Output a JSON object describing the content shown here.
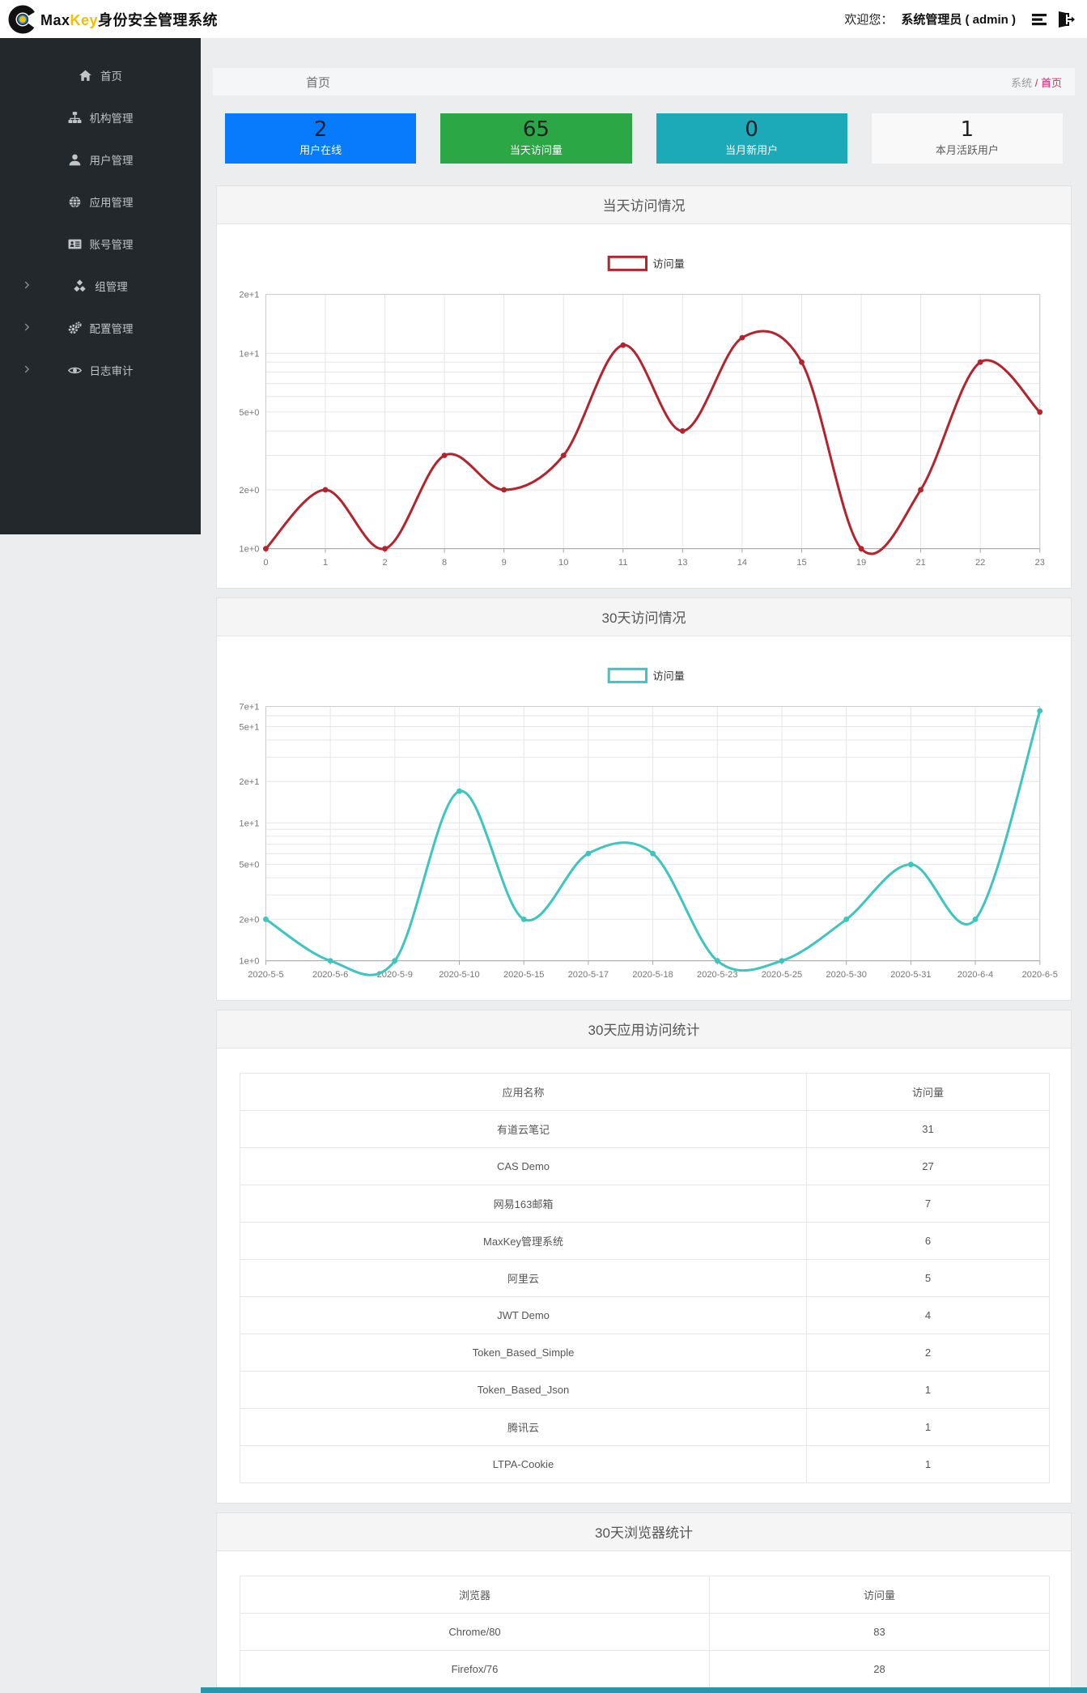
{
  "header": {
    "logo_max": "Max",
    "logo_key": "Key",
    "logo_suffix": "身份安全管理系统",
    "welcome_label": "欢迎您：",
    "admin_label": "系统管理员 ( admin )"
  },
  "sidebar": {
    "items": [
      {
        "label": "首页",
        "icon": "home-icon",
        "expandable": false
      },
      {
        "label": "机构管理",
        "icon": "org-icon",
        "expandable": false
      },
      {
        "label": "用户管理",
        "icon": "user-icon",
        "expandable": false
      },
      {
        "label": "应用管理",
        "icon": "app-icon",
        "expandable": false
      },
      {
        "label": "账号管理",
        "icon": "account-icon",
        "expandable": false
      },
      {
        "label": "组管理",
        "icon": "group-icon",
        "expandable": true
      },
      {
        "label": "配置管理",
        "icon": "config-icon",
        "expandable": true
      },
      {
        "label": "日志审计",
        "icon": "audit-icon",
        "expandable": true
      }
    ]
  },
  "breadcrumb": {
    "page_title": "首页",
    "root": "系统",
    "separator": " / ",
    "current": "首页"
  },
  "stats": {
    "cards": [
      {
        "value": "2",
        "label": "用户在线",
        "color": "#077bfb"
      },
      {
        "value": "65",
        "label": "当天访问量",
        "color": "#2ba745"
      },
      {
        "value": "0",
        "label": "当月新用户",
        "color": "#1ca9b8"
      },
      {
        "value": "1",
        "label": "本月活跃用户",
        "color": "#f9f9f9"
      }
    ]
  },
  "colors": {
    "accent_breadcrumb": "#e2246a",
    "chart_daily": "#b5232c",
    "chart_monthly": "#3dc5c1",
    "sidebar_bg": "#23282d",
    "footer_bar": "#2a96aa"
  },
  "chart_data": [
    {
      "type": "line",
      "title": "当天访问情况",
      "legend": "访问量",
      "color": "#b5232c",
      "smooth": true,
      "y_scale": "log",
      "y_max": 20,
      "y_grid": [
        1,
        2,
        3,
        4,
        5,
        6,
        7,
        8,
        9,
        10,
        20
      ],
      "y_tick_labels": [
        {
          "value": 1,
          "label": "1e+0"
        },
        {
          "value": 2,
          "label": "2e+0"
        },
        {
          "value": 5,
          "label": "5e+0"
        },
        {
          "value": 10,
          "label": "1e+1"
        },
        {
          "value": 20,
          "label": "2e+1"
        }
      ],
      "categories": [
        "0",
        "1",
        "2",
        "8",
        "9",
        "10",
        "11",
        "13",
        "14",
        "15",
        "19",
        "21",
        "22",
        "23"
      ],
      "values": [
        1,
        2,
        1,
        3,
        2,
        3,
        11,
        4,
        12,
        9,
        1,
        2,
        9,
        5
      ]
    },
    {
      "type": "line",
      "title": "30天访问情况",
      "legend": "访问量",
      "color": "#3dc5c1",
      "smooth": true,
      "y_scale": "log",
      "y_max": 70,
      "y_grid": [
        1,
        2,
        3,
        4,
        5,
        6,
        7,
        8,
        9,
        10,
        20,
        30,
        40,
        50,
        60,
        70
      ],
      "y_tick_labels": [
        {
          "value": 1,
          "label": "1e+0"
        },
        {
          "value": 2,
          "label": "2e+0"
        },
        {
          "value": 5,
          "label": "5e+0"
        },
        {
          "value": 10,
          "label": "1e+1"
        },
        {
          "value": 20,
          "label": "2e+1"
        },
        {
          "value": 50,
          "label": "5e+1"
        },
        {
          "value": 70,
          "label": "7e+1"
        }
      ],
      "categories": [
        "2020-5-5",
        "2020-5-6",
        "2020-5-9",
        "2020-5-10",
        "2020-5-15",
        "2020-5-17",
        "2020-5-18",
        "2020-5-23",
        "2020-5-25",
        "2020-5-30",
        "2020-5-31",
        "2020-6-4",
        "2020-6-5"
      ],
      "values": [
        2,
        1,
        1,
        17,
        2,
        6,
        6,
        1,
        1,
        2,
        5,
        2,
        65
      ]
    }
  ],
  "tables": {
    "apps": {
      "title": "30天应用访问统计",
      "headers": [
        "应用名称",
        "访问量"
      ],
      "rows": [
        [
          "有道云笔记",
          "31"
        ],
        [
          "CAS Demo",
          "27"
        ],
        [
          "网易163邮箱",
          "7"
        ],
        [
          "MaxKey管理系统",
          "6"
        ],
        [
          "阿里云",
          "5"
        ],
        [
          "JWT Demo",
          "4"
        ],
        [
          "Token_Based_Simple",
          "2"
        ],
        [
          "Token_Based_Json",
          "1"
        ],
        [
          "腾讯云",
          "1"
        ],
        [
          "LTPA-Cookie",
          "1"
        ]
      ]
    },
    "browsers": {
      "title": "30天浏览器统计",
      "headers": [
        "浏览器",
        "访问量"
      ],
      "rows": [
        [
          "Chrome/80",
          "83"
        ],
        [
          "Firefox/76",
          "28"
        ]
      ]
    }
  }
}
